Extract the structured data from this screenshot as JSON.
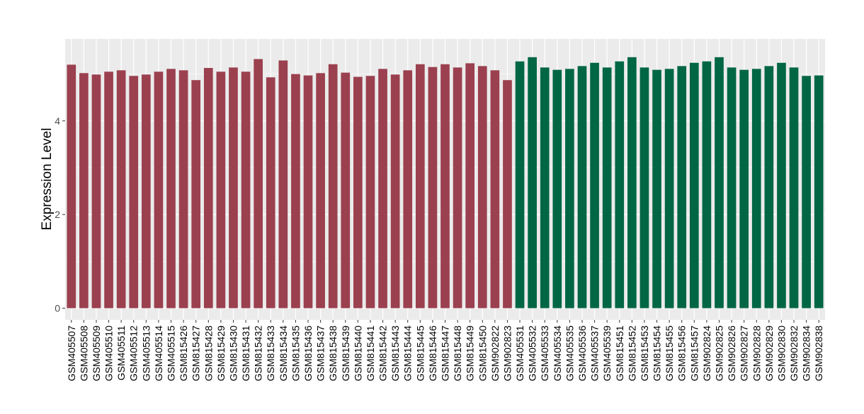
{
  "chart_data": {
    "type": "bar",
    "title": "",
    "xlabel": "",
    "ylabel": "Expression Level",
    "ylim": [
      -0.25,
      5.75
    ],
    "yticks": [
      0,
      2,
      4
    ],
    "grid": true,
    "legend": "none",
    "categories": [
      "GSM405507",
      "GSM405508",
      "GSM405509",
      "GSM405510",
      "GSM405511",
      "GSM405512",
      "GSM405513",
      "GSM405514",
      "GSM405515",
      "GSM815426",
      "GSM815427",
      "GSM815428",
      "GSM815429",
      "GSM815430",
      "GSM815431",
      "GSM815432",
      "GSM815433",
      "GSM815434",
      "GSM815435",
      "GSM815436",
      "GSM815437",
      "GSM815438",
      "GSM815439",
      "GSM815440",
      "GSM815441",
      "GSM815442",
      "GSM815443",
      "GSM815444",
      "GSM815445",
      "GSM815446",
      "GSM815447",
      "GSM815448",
      "GSM815449",
      "GSM815450",
      "GSM902822",
      "GSM902823",
      "GSM405531",
      "GSM405532",
      "GSM405533",
      "GSM405534",
      "GSM405535",
      "GSM405536",
      "GSM405537",
      "GSM405539",
      "GSM815451",
      "GSM815452",
      "GSM815453",
      "GSM815454",
      "GSM815455",
      "GSM815456",
      "GSM815457",
      "GSM902824",
      "GSM902825",
      "GSM902826",
      "GSM902827",
      "GSM902828",
      "GSM902829",
      "GSM902830",
      "GSM902832",
      "GSM902834",
      "GSM902838"
    ],
    "values": [
      5.2,
      5.02,
      4.99,
      5.05,
      5.08,
      4.96,
      4.99,
      5.05,
      5.11,
      5.08,
      4.87,
      5.13,
      5.05,
      5.14,
      5.05,
      5.32,
      4.93,
      5.29,
      5.0,
      4.97,
      5.02,
      5.21,
      5.03,
      4.94,
      4.96,
      5.11,
      4.99,
      5.08,
      5.21,
      5.15,
      5.21,
      5.14,
      5.23,
      5.17,
      5.08,
      4.87,
      5.27,
      5.36,
      5.14,
      5.09,
      5.11,
      5.17,
      5.24,
      5.14,
      5.27,
      5.36,
      5.14,
      5.09,
      5.11,
      5.17,
      5.24,
      5.27,
      5.36,
      5.14,
      5.09,
      5.11,
      5.17,
      5.24,
      5.14,
      4.96,
      4.97
    ],
    "groups": [
      36,
      25
    ],
    "colors": [
      "#9b404f",
      "#006644"
    ]
  }
}
